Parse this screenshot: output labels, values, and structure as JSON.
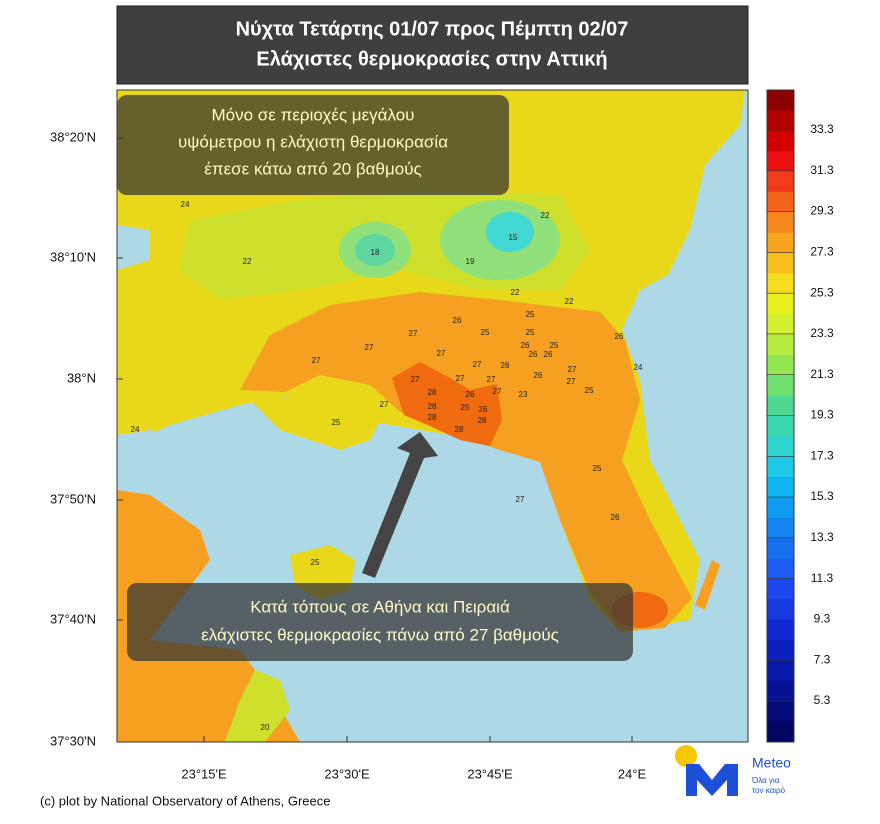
{
  "title": [
    "Νύχτα Τετάρτης 01/07 προς Πέμπτη 02/07",
    "Ελάχιστες θερμοκρασίες στην Αττική"
  ],
  "annotations": [
    {
      "lines": [
        "Μόνο σε περιοχές μεγάλου",
        "υψόμετρου η ελάχιστη θερμοκρασία",
        "έπεσε κάτω από 20 βαθμούς"
      ]
    },
    {
      "lines": [
        "Κατά τόπους σε Αθήνα και Πειραιά",
        "ελάχιστες θερμοκρασίες πάνω από 27 βαθμούς"
      ]
    }
  ],
  "latitude_labels": [
    "38°20'N",
    "38°10'N",
    "38°N",
    "37°50'N",
    "37°40'N",
    "37°30'N"
  ],
  "longitude_labels": [
    "23°15'E",
    "23°30'E",
    "23°45'E",
    "24°E"
  ],
  "colorbar": {
    "ticks": [
      33.3,
      31.3,
      29.3,
      27.3,
      25.3,
      23.3,
      21.3,
      19.3,
      17.3,
      15.3,
      13.3,
      11.3,
      9.3,
      7.3,
      5.3
    ]
  },
  "stations": [
    24,
    22,
    18,
    19,
    15,
    22,
    22,
    22,
    25,
    26,
    25,
    25,
    27,
    27,
    27,
    26,
    25,
    26,
    27,
    26,
    26,
    27,
    26,
    27,
    27,
    27,
    26,
    27,
    27,
    24,
    28,
    26,
    27,
    23,
    25,
    27,
    28,
    25,
    26,
    28,
    25,
    24,
    28,
    28,
    25,
    27,
    26,
    25,
    20
  ],
  "credit": "(c) plot by National Observatory of Athens, Greece",
  "logo": {
    "name": "Meteo",
    "tagline": [
      "Όλα για",
      "τον καιρό"
    ]
  }
}
